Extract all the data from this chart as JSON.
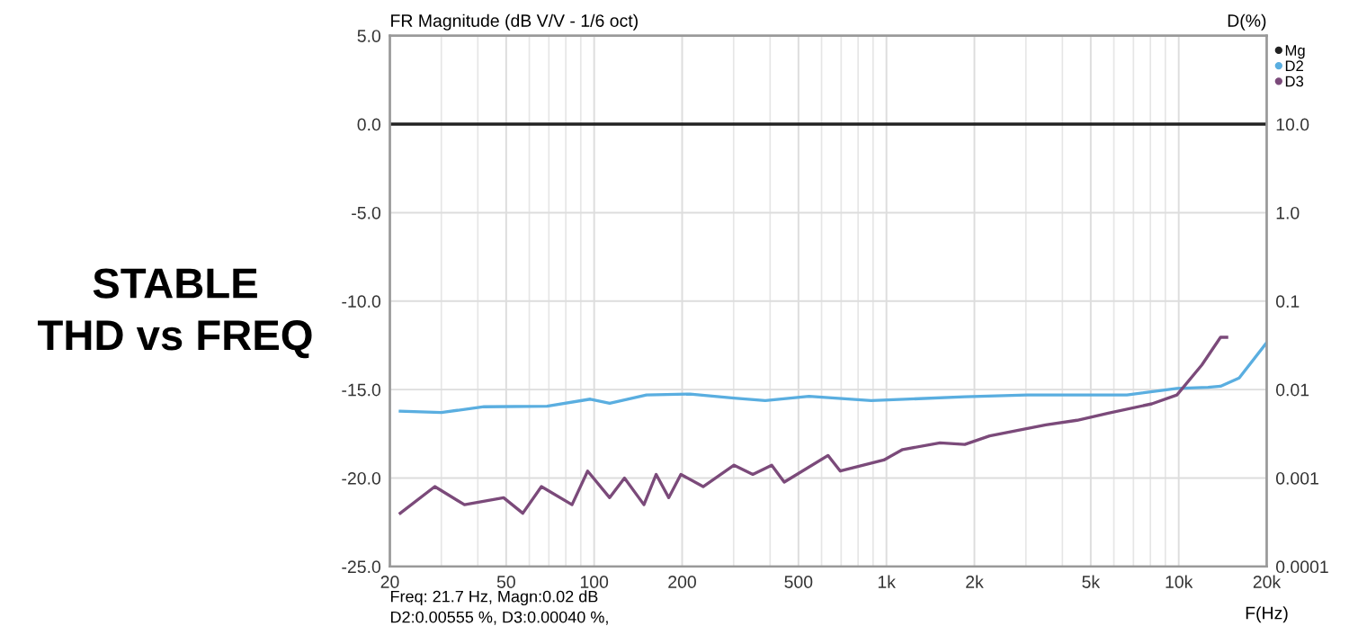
{
  "chart_data": {
    "type": "line",
    "ylabel": "D(%)",
    "y2label": "FR Magnitude (dB V/V - 1/6 oct)",
    "xlabel": "F(Hz)",
    "annotations": [
      "STABLE\nTHD vs FREQ",
      "Freq: 21.7 Hz, Magn:0.02 dB",
      "D2:0.00555 %, D3:0.00040 %,"
    ],
    "log": "xy",
    "grid": true,
    "legend": "top right",
    "xlim": [
      20,
      20000
    ],
    "xticks": [
      20,
      50,
      100,
      200,
      500,
      {
        "value": 1000,
        "label": "1k"
      },
      {
        "value": 2000,
        "label": "2k"
      },
      {
        "value": 5000,
        "label": "5k"
      },
      {
        "value": 10000,
        "label": "10k"
      },
      {
        "value": 20000,
        "label": "20k"
      }
    ],
    "ylim": [
      0.0001,
      100
    ],
    "yticks": [
      {
        "value": 10,
        "label": "10.0"
      },
      {
        "value": 1,
        "label": "1.0"
      },
      0.1,
      0.01,
      0.001,
      0.0001
    ],
    "y2lim": [
      -25,
      5
    ],
    "y2ticks": [
      {
        "value": 5,
        "label": "5.0"
      },
      {
        "value": 0,
        "label": "0.0"
      },
      {
        "value": -5,
        "label": "-5.0"
      },
      {
        "value": -10,
        "label": "-10.0"
      },
      {
        "value": -15,
        "label": "-15.0"
      },
      {
        "value": -20,
        "label": "-20.0"
      },
      {
        "value": -25,
        "label": "-25.0"
      }
    ],
    "series": [
      {
        "name": "Mg",
        "color": "#222222",
        "axis": "y2",
        "x": [
          20,
          20000
        ],
        "values": [
          0,
          0
        ]
      },
      {
        "name": "D2",
        "color": "#5aaee0",
        "x": [
          21.7,
          30,
          42,
          69,
          97,
          113,
          151,
          213,
          301,
          385,
          543,
          887,
          1854,
          3030,
          6650,
          9860,
          12600,
          13900,
          16100,
          20000
        ],
        "values": [
          0.0057,
          0.0055,
          0.0064,
          0.0065,
          0.0078,
          0.007,
          0.0087,
          0.0089,
          0.008,
          0.0075,
          0.0084,
          0.0075,
          0.0083,
          0.0087,
          0.0087,
          0.0103,
          0.0106,
          0.0109,
          0.0135,
          0.034
        ]
      },
      {
        "name": "D3",
        "color": "#7b4a7a",
        "x": [
          21.7,
          28.5,
          36,
          49,
          57,
          66,
          84,
          95,
          113,
          127,
          148,
          163,
          180,
          198,
          236,
          301,
          349,
          405,
          447,
          631,
          695,
          980,
          1136,
          1525,
          1854,
          2255,
          3510,
          4490,
          5740,
          8090,
          9860,
          12000,
          13900,
          14600
        ],
        "values": [
          0.0004,
          0.0008,
          0.0005,
          0.0006,
          0.0004,
          0.0008,
          0.0005,
          0.0012,
          0.0006,
          0.001,
          0.0005,
          0.0011,
          0.0006,
          0.0011,
          0.0008,
          0.0014,
          0.0011,
          0.0014,
          0.0009,
          0.0018,
          0.0012,
          0.0016,
          0.0021,
          0.0025,
          0.0024,
          0.003,
          0.004,
          0.0045,
          0.0054,
          0.0069,
          0.0087,
          0.019,
          0.039,
          0.039
        ]
      }
    ]
  }
}
